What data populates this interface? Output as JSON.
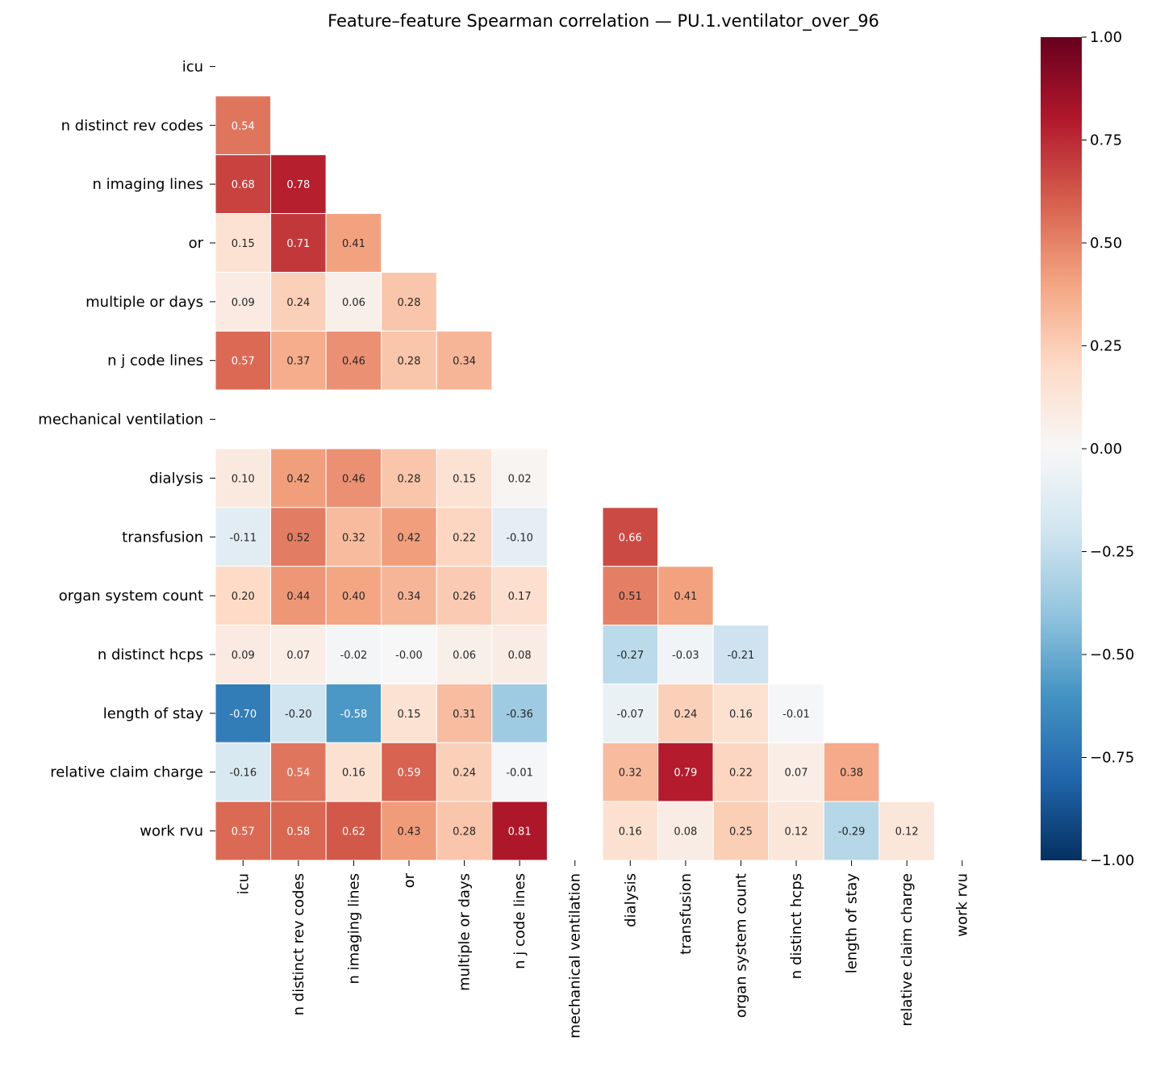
{
  "chart_data": {
    "type": "heatmap",
    "title": "Feature–feature Spearman correlation — PU.1.ventilator_over_96",
    "labels": [
      "icu",
      "n distinct rev codes",
      "n imaging lines",
      "or",
      "multiple or days",
      "n j code lines",
      "mechanical ventilation",
      "dialysis",
      "transfusion",
      "organ system count",
      "n distinct hcps",
      "length of stay",
      "relative claim charge",
      "work rvu"
    ],
    "mask": "upper triangle incl. diagonal",
    "matrix_lower": [
      [],
      [
        0.54
      ],
      [
        0.68,
        0.78
      ],
      [
        0.15,
        0.71,
        0.41
      ],
      [
        0.09,
        0.24,
        0.06,
        0.28
      ],
      [
        0.57,
        0.37,
        0.46,
        0.28,
        0.34
      ],
      [
        null,
        null,
        null,
        null,
        null,
        null
      ],
      [
        0.1,
        0.42,
        0.46,
        0.28,
        0.15,
        0.02,
        null
      ],
      [
        -0.11,
        0.52,
        0.32,
        0.42,
        0.22,
        -0.1,
        null,
        0.66
      ],
      [
        0.2,
        0.44,
        0.4,
        0.34,
        0.26,
        0.17,
        null,
        0.51,
        0.41
      ],
      [
        0.09,
        0.07,
        -0.02,
        -0.0,
        0.06,
        0.08,
        null,
        -0.27,
        -0.03,
        -0.21
      ],
      [
        -0.7,
        -0.2,
        -0.58,
        0.15,
        0.31,
        -0.36,
        null,
        -0.07,
        0.24,
        0.16,
        -0.01
      ],
      [
        -0.16,
        0.54,
        0.16,
        0.59,
        0.24,
        -0.01,
        null,
        0.32,
        0.79,
        0.22,
        0.07,
        0.38
      ],
      [
        0.57,
        0.58,
        0.62,
        0.43,
        0.28,
        0.81,
        null,
        0.16,
        0.08,
        0.25,
        0.12,
        -0.29,
        0.12
      ]
    ],
    "colormap": "RdBu_r",
    "vmin": -1,
    "vmax": 1,
    "colorbar_ticks": [
      "1.00",
      "0.75",
      "0.50",
      "0.25",
      "0.00",
      "−0.25",
      "−0.50",
      "−0.75",
      "−1.00"
    ],
    "colorbar_tick_values": [
      1,
      0.75,
      0.5,
      0.25,
      0,
      -0.25,
      -0.5,
      -0.75,
      -1
    ],
    "colormap_stops": [
      "#053061",
      "#2166ac",
      "#4393c3",
      "#92c5de",
      "#d1e5f0",
      "#f7f7f7",
      "#fddbc7",
      "#f4a582",
      "#d6604d",
      "#b2182b",
      "#67001f"
    ]
  }
}
